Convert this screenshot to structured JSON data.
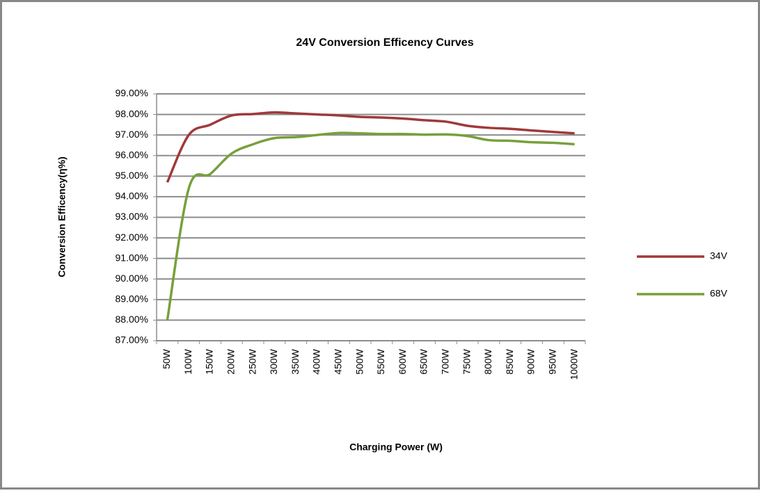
{
  "chart_data": {
    "type": "line",
    "title": "24V  Conversion Efficency Curves",
    "x_label": "Charging  Power  (W)",
    "y_label": "Conversion Efficency(η%)",
    "categories": [
      "50W",
      "100W",
      "150W",
      "200W",
      "250W",
      "300W",
      "350W",
      "400W",
      "450W",
      "500W",
      "550W",
      "600W",
      "650W",
      "700W",
      "750W",
      "800W",
      "850W",
      "900W",
      "950W",
      "1000W"
    ],
    "series": [
      {
        "name": "34V",
        "color": "#a0393a",
        "values": [
          94.7,
          97.0,
          97.5,
          97.95,
          98.02,
          98.1,
          98.05,
          98.0,
          97.95,
          97.88,
          97.85,
          97.8,
          97.72,
          97.65,
          97.45,
          97.35,
          97.3,
          97.22,
          97.15,
          97.08
        ]
      },
      {
        "name": "68V",
        "color": "#77a03c",
        "values": [
          88.0,
          94.4,
          95.1,
          96.1,
          96.55,
          96.85,
          96.9,
          97.0,
          97.1,
          97.08,
          97.05,
          97.05,
          97.02,
          97.03,
          96.95,
          96.75,
          96.72,
          96.65,
          96.62,
          96.55
        ]
      }
    ],
    "ylim": [
      87,
      99
    ],
    "yticks": [
      {
        "value": 87,
        "label": "87.00%"
      },
      {
        "value": 88,
        "label": "88.00%"
      },
      {
        "value": 89,
        "label": "89.00%"
      },
      {
        "value": 90,
        "label": "90.00%"
      },
      {
        "value": 91,
        "label": "91.00%"
      },
      {
        "value": 92,
        "label": "92.00%"
      },
      {
        "value": 93,
        "label": "93.00%"
      },
      {
        "value": 94,
        "label": "94.00%"
      },
      {
        "value": 95,
        "label": "95.00%"
      },
      {
        "value": 96,
        "label": "96.00%"
      },
      {
        "value": 97,
        "label": "97.00%"
      },
      {
        "value": 98,
        "label": "98.00%"
      },
      {
        "value": 99,
        "label": "99.00%"
      }
    ],
    "grid": true,
    "legend": "right"
  }
}
